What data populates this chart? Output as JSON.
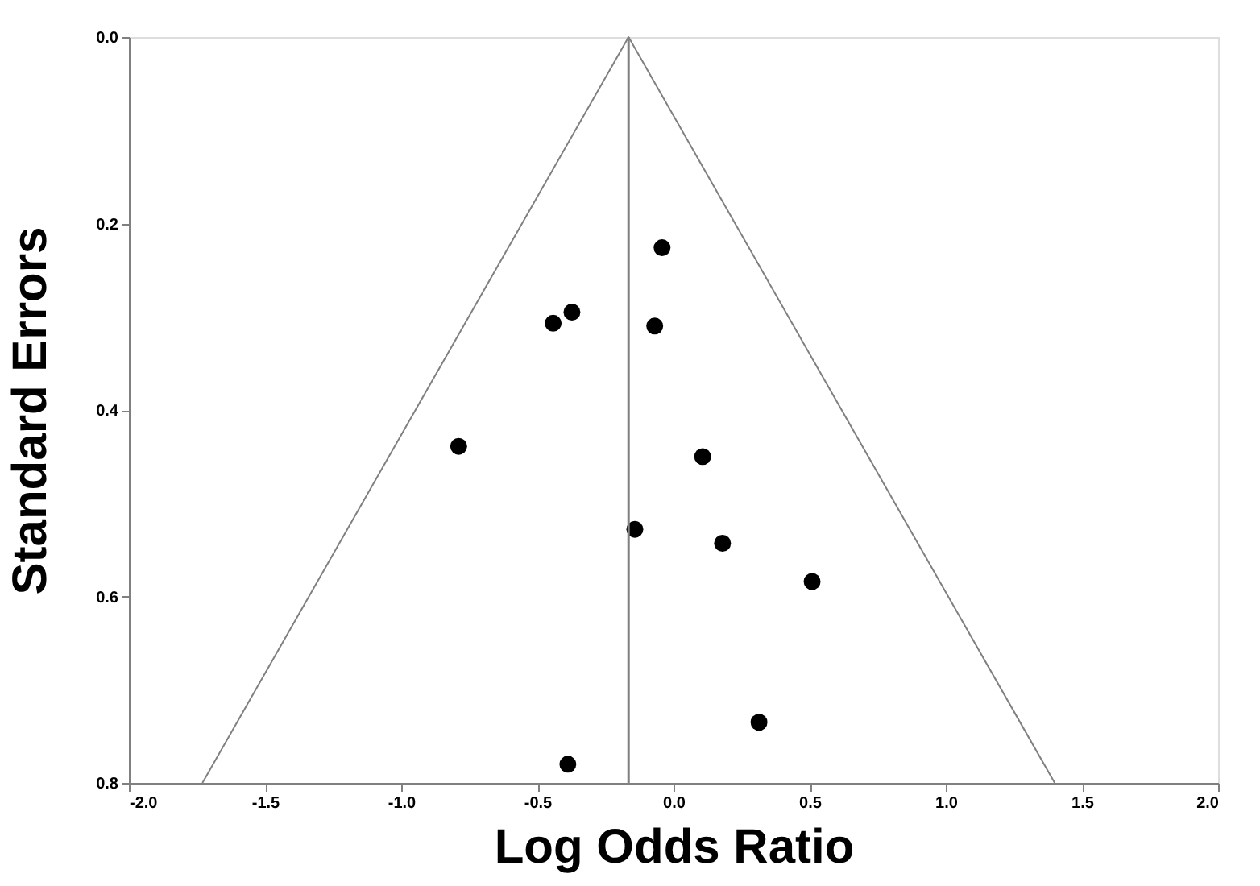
{
  "chart_data": {
    "type": "scatter",
    "xlabel": "Log Odds Ratio",
    "ylabel": "Standard Errors",
    "xlim": [
      -2.0,
      2.0
    ],
    "ylim": [
      0.8,
      0.0
    ],
    "xticks": [
      {
        "value": -2,
        "label": "-2.0"
      },
      {
        "value": -1.5,
        "label": "-1.5"
      },
      {
        "value": -1,
        "label": "-1.0"
      },
      {
        "value": -0.5,
        "label": "-0.5"
      },
      {
        "value": 0,
        "label": "0.0"
      },
      {
        "value": 0.5,
        "label": "0.5"
      },
      {
        "value": 1,
        "label": "1.0"
      },
      {
        "value": 1.5,
        "label": "1.5"
      },
      {
        "value": 2,
        "label": "2.0"
      }
    ],
    "yticks": [
      {
        "value": 0,
        "label": "0.0"
      },
      {
        "value": 0.2,
        "label": "0.2"
      },
      {
        "value": 0.4,
        "label": "0.4"
      },
      {
        "value": 0.6,
        "label": "0.6"
      },
      {
        "value": 0.8,
        "label": "0.8"
      }
    ],
    "grid": false,
    "series": [
      {
        "marker": "circle",
        "color": "#000000",
        "x": [
          -0.373,
          -0.442,
          -0.789,
          -0.142,
          -0.388,
          -0.042,
          -0.069,
          0.107,
          0.18,
          0.509,
          0.314
        ],
        "values": [
          0.295,
          0.307,
          0.439,
          0.528,
          0.78,
          0.226,
          0.31,
          0.45,
          0.543,
          0.584,
          0.735
        ]
      },
      {
        "type": "line",
        "color": "#808080",
        "marker": "none",
        "x": [
          -1.73,
          -0.165,
          1.4
        ],
        "values": [
          0.8,
          0.0,
          0.8
        ]
      }
    ],
    "ref_lines": [
      {
        "axis": "x",
        "value": -0.165,
        "color": "#808080"
      }
    ]
  }
}
